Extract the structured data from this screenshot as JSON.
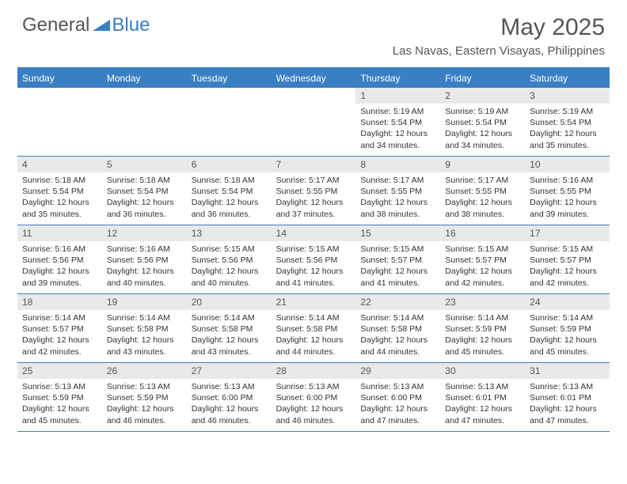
{
  "brand": {
    "general": "General",
    "blue": "Blue"
  },
  "title": "May 2025",
  "location": "Las Navas, Eastern Visayas, Philippines",
  "colors": {
    "header_bg": "#3a7fc4",
    "daynum_bg": "#e9e9e9",
    "text": "#333333",
    "title_text": "#555555"
  },
  "dow": [
    "Sunday",
    "Monday",
    "Tuesday",
    "Wednesday",
    "Thursday",
    "Friday",
    "Saturday"
  ],
  "weeks": [
    [
      {
        "n": "",
        "sr": "",
        "ss": "",
        "dl": ""
      },
      {
        "n": "",
        "sr": "",
        "ss": "",
        "dl": ""
      },
      {
        "n": "",
        "sr": "",
        "ss": "",
        "dl": ""
      },
      {
        "n": "",
        "sr": "",
        "ss": "",
        "dl": ""
      },
      {
        "n": "1",
        "sr": "Sunrise: 5:19 AM",
        "ss": "Sunset: 5:54 PM",
        "dl": "Daylight: 12 hours and 34 minutes."
      },
      {
        "n": "2",
        "sr": "Sunrise: 5:19 AM",
        "ss": "Sunset: 5:54 PM",
        "dl": "Daylight: 12 hours and 34 minutes."
      },
      {
        "n": "3",
        "sr": "Sunrise: 5:19 AM",
        "ss": "Sunset: 5:54 PM",
        "dl": "Daylight: 12 hours and 35 minutes."
      }
    ],
    [
      {
        "n": "4",
        "sr": "Sunrise: 5:18 AM",
        "ss": "Sunset: 5:54 PM",
        "dl": "Daylight: 12 hours and 35 minutes."
      },
      {
        "n": "5",
        "sr": "Sunrise: 5:18 AM",
        "ss": "Sunset: 5:54 PM",
        "dl": "Daylight: 12 hours and 36 minutes."
      },
      {
        "n": "6",
        "sr": "Sunrise: 5:18 AM",
        "ss": "Sunset: 5:54 PM",
        "dl": "Daylight: 12 hours and 36 minutes."
      },
      {
        "n": "7",
        "sr": "Sunrise: 5:17 AM",
        "ss": "Sunset: 5:55 PM",
        "dl": "Daylight: 12 hours and 37 minutes."
      },
      {
        "n": "8",
        "sr": "Sunrise: 5:17 AM",
        "ss": "Sunset: 5:55 PM",
        "dl": "Daylight: 12 hours and 38 minutes."
      },
      {
        "n": "9",
        "sr": "Sunrise: 5:17 AM",
        "ss": "Sunset: 5:55 PM",
        "dl": "Daylight: 12 hours and 38 minutes."
      },
      {
        "n": "10",
        "sr": "Sunrise: 5:16 AM",
        "ss": "Sunset: 5:55 PM",
        "dl": "Daylight: 12 hours and 39 minutes."
      }
    ],
    [
      {
        "n": "11",
        "sr": "Sunrise: 5:16 AM",
        "ss": "Sunset: 5:56 PM",
        "dl": "Daylight: 12 hours and 39 minutes."
      },
      {
        "n": "12",
        "sr": "Sunrise: 5:16 AM",
        "ss": "Sunset: 5:56 PM",
        "dl": "Daylight: 12 hours and 40 minutes."
      },
      {
        "n": "13",
        "sr": "Sunrise: 5:15 AM",
        "ss": "Sunset: 5:56 PM",
        "dl": "Daylight: 12 hours and 40 minutes."
      },
      {
        "n": "14",
        "sr": "Sunrise: 5:15 AM",
        "ss": "Sunset: 5:56 PM",
        "dl": "Daylight: 12 hours and 41 minutes."
      },
      {
        "n": "15",
        "sr": "Sunrise: 5:15 AM",
        "ss": "Sunset: 5:57 PM",
        "dl": "Daylight: 12 hours and 41 minutes."
      },
      {
        "n": "16",
        "sr": "Sunrise: 5:15 AM",
        "ss": "Sunset: 5:57 PM",
        "dl": "Daylight: 12 hours and 42 minutes."
      },
      {
        "n": "17",
        "sr": "Sunrise: 5:15 AM",
        "ss": "Sunset: 5:57 PM",
        "dl": "Daylight: 12 hours and 42 minutes."
      }
    ],
    [
      {
        "n": "18",
        "sr": "Sunrise: 5:14 AM",
        "ss": "Sunset: 5:57 PM",
        "dl": "Daylight: 12 hours and 42 minutes."
      },
      {
        "n": "19",
        "sr": "Sunrise: 5:14 AM",
        "ss": "Sunset: 5:58 PM",
        "dl": "Daylight: 12 hours and 43 minutes."
      },
      {
        "n": "20",
        "sr": "Sunrise: 5:14 AM",
        "ss": "Sunset: 5:58 PM",
        "dl": "Daylight: 12 hours and 43 minutes."
      },
      {
        "n": "21",
        "sr": "Sunrise: 5:14 AM",
        "ss": "Sunset: 5:58 PM",
        "dl": "Daylight: 12 hours and 44 minutes."
      },
      {
        "n": "22",
        "sr": "Sunrise: 5:14 AM",
        "ss": "Sunset: 5:58 PM",
        "dl": "Daylight: 12 hours and 44 minutes."
      },
      {
        "n": "23",
        "sr": "Sunrise: 5:14 AM",
        "ss": "Sunset: 5:59 PM",
        "dl": "Daylight: 12 hours and 45 minutes."
      },
      {
        "n": "24",
        "sr": "Sunrise: 5:14 AM",
        "ss": "Sunset: 5:59 PM",
        "dl": "Daylight: 12 hours and 45 minutes."
      }
    ],
    [
      {
        "n": "25",
        "sr": "Sunrise: 5:13 AM",
        "ss": "Sunset: 5:59 PM",
        "dl": "Daylight: 12 hours and 45 minutes."
      },
      {
        "n": "26",
        "sr": "Sunrise: 5:13 AM",
        "ss": "Sunset: 5:59 PM",
        "dl": "Daylight: 12 hours and 46 minutes."
      },
      {
        "n": "27",
        "sr": "Sunrise: 5:13 AM",
        "ss": "Sunset: 6:00 PM",
        "dl": "Daylight: 12 hours and 46 minutes."
      },
      {
        "n": "28",
        "sr": "Sunrise: 5:13 AM",
        "ss": "Sunset: 6:00 PM",
        "dl": "Daylight: 12 hours and 46 minutes."
      },
      {
        "n": "29",
        "sr": "Sunrise: 5:13 AM",
        "ss": "Sunset: 6:00 PM",
        "dl": "Daylight: 12 hours and 47 minutes."
      },
      {
        "n": "30",
        "sr": "Sunrise: 5:13 AM",
        "ss": "Sunset: 6:01 PM",
        "dl": "Daylight: 12 hours and 47 minutes."
      },
      {
        "n": "31",
        "sr": "Sunrise: 5:13 AM",
        "ss": "Sunset: 6:01 PM",
        "dl": "Daylight: 12 hours and 47 minutes."
      }
    ]
  ]
}
